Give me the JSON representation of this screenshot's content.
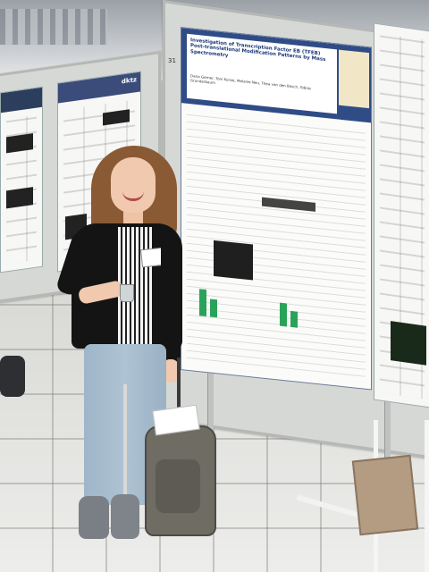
{
  "scene": {
    "description_hidden": "",
    "poster": {
      "title": "Investigation of Transcription Factor EB (TFEB) Post-translational Modification Patterns by Mass Spectrometry",
      "authors": "Daria Gerner, Toni Kunze, Melanie Neu, Thea van den Bosch, Tobias Grunderbaum",
      "number": "31"
    },
    "left_poster": {
      "header": "dktz"
    },
    "colors": {
      "poster_header": "#2f4c86",
      "board": "#d6d8d5",
      "jacket": "#141414",
      "jeans": "#aec3d3",
      "hair": "#8a5a34"
    }
  }
}
